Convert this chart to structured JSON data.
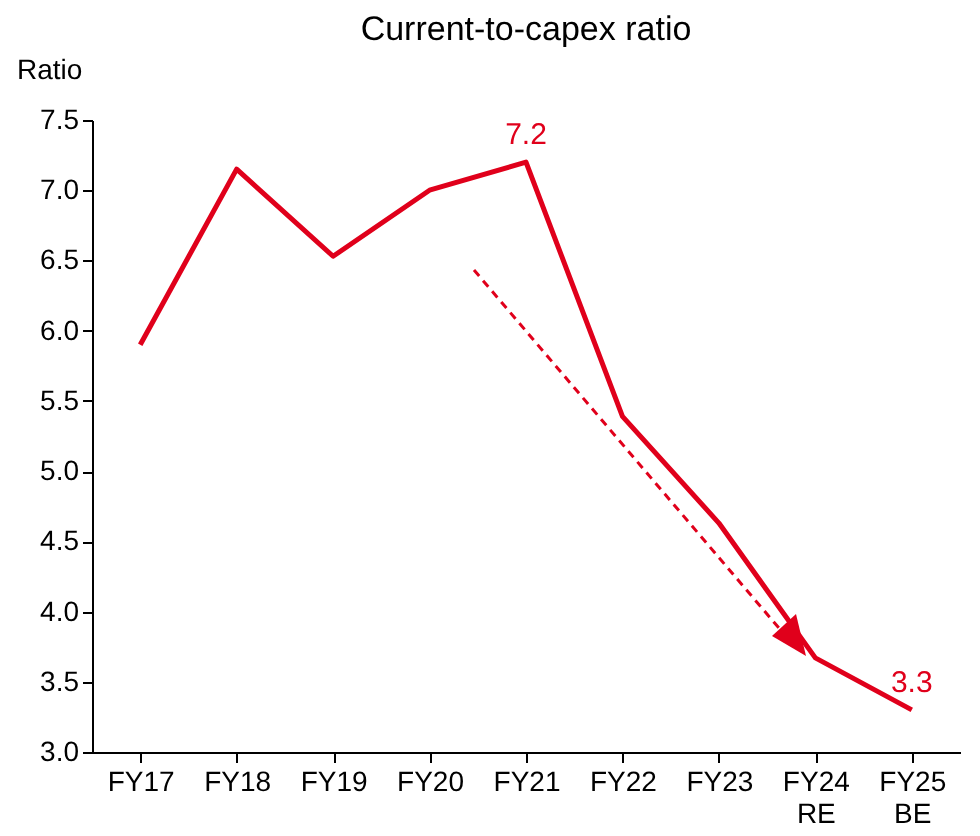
{
  "chart_data": {
    "type": "line",
    "title": "Current-to-capex ratio",
    "ylabel": "Ratio",
    "categories": [
      "FY17",
      "FY18",
      "FY19",
      "FY20",
      "FY21",
      "FY22",
      "FY23",
      "FY24\nRE",
      "FY25\nBE"
    ],
    "series": [
      {
        "color": "#e0001b",
        "values": [
          5.9,
          7.15,
          6.53,
          7.0,
          7.2,
          5.39,
          4.63,
          3.67,
          3.3
        ],
        "value_labels": [
          null,
          null,
          null,
          null,
          "7.2",
          null,
          null,
          null,
          "3.3"
        ]
      }
    ],
    "ylim": [
      3.0,
      7.5
    ],
    "yticks": [
      {
        "value": 3,
        "label": "3.0"
      },
      3.5,
      {
        "value": 4,
        "label": "4.0"
      },
      4.5,
      {
        "value": 5,
        "label": "5.0"
      },
      5.5,
      {
        "value": 6,
        "label": "6.0"
      },
      6.5,
      {
        "value": 7,
        "label": "7.0"
      },
      7.5
    ],
    "grid": false,
    "marker": "none",
    "line_style": "solid"
  }
}
